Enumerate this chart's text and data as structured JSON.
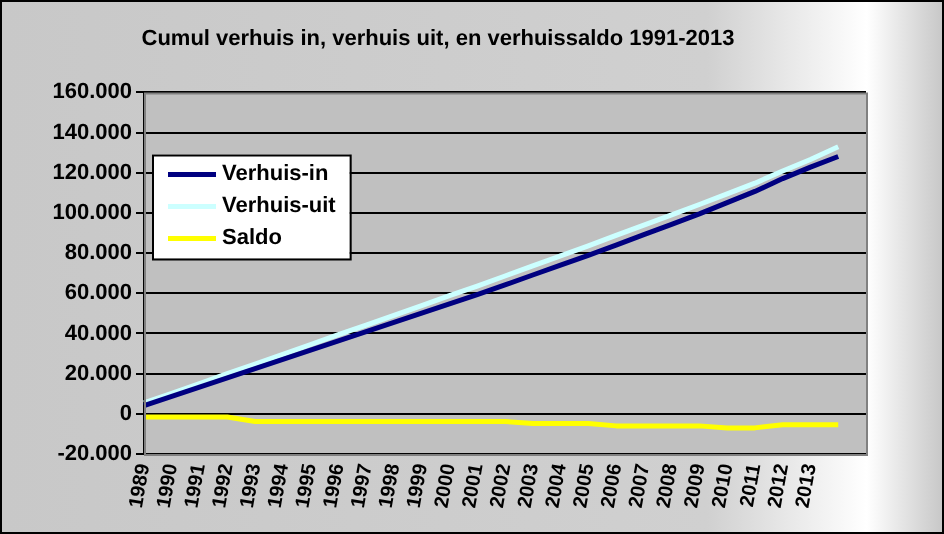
{
  "chart_data": {
    "type": "line",
    "title": "Cumul verhuis in, verhuis uit, en verhuissaldo 1991-2013",
    "categories": [
      "1989",
      "1990",
      "1991",
      "1992",
      "1993",
      "1994",
      "1995",
      "1996",
      "1997",
      "1998",
      "1999",
      "2000",
      "2001",
      "2002",
      "2003",
      "2004",
      "2005",
      "2006",
      "2007",
      "2008",
      "2009",
      "2010",
      "2011",
      "2012",
      "2013",
      null,
      null
    ],
    "series": [
      {
        "name": "Verhuis-in",
        "color": "#000080",
        "values": [
          4100,
          8700,
          13300,
          17900,
          22500,
          27100,
          31700,
          36300,
          40900,
          45500,
          50100,
          54700,
          59300,
          64200,
          69100,
          74000,
          78900,
          84000,
          89200,
          94300,
          99500,
          105100,
          110700,
          117100,
          122800,
          128100,
          null
        ]
      },
      {
        "name": "Verhuis-uit",
        "color": "#ccffff",
        "values": [
          5400,
          10200,
          15100,
          20000,
          24800,
          29600,
          34500,
          39400,
          44200,
          49000,
          53900,
          58800,
          63600,
          68600,
          73600,
          78600,
          83600,
          88800,
          93900,
          99000,
          104200,
          109500,
          114800,
          120900,
          126600,
          132900,
          null
        ]
      },
      {
        "name": "Saldo",
        "color": "#ffff00",
        "values": [
          -1600,
          -1600,
          -1600,
          -1600,
          -3800,
          -3800,
          -3800,
          -3800,
          -3800,
          -3800,
          -3800,
          -3800,
          -3800,
          -3800,
          -4800,
          -4800,
          -4800,
          -6000,
          -6000,
          -6000,
          -6000,
          -7000,
          -7000,
          -5400,
          -5400,
          -5400,
          null
        ]
      }
    ],
    "ylim": [
      -20000,
      160000
    ],
    "yticks": [
      {
        "value": -20000,
        "label": "-20.000"
      },
      {
        "value": 0,
        "label": "0"
      },
      {
        "value": 20000,
        "label": "20.000"
      },
      {
        "value": 40000,
        "label": "40.000"
      },
      {
        "value": 60000,
        "label": "60.000"
      },
      {
        "value": 80000,
        "label": "80.000"
      },
      {
        "value": 100000,
        "label": "100.000"
      },
      {
        "value": 120000,
        "label": "120.000"
      },
      {
        "value": 140000,
        "label": "140.000"
      },
      {
        "value": 160000,
        "label": "160.000"
      }
    ],
    "grid": "y",
    "legend": "top left",
    "marker": "none",
    "line_style": "solid"
  }
}
